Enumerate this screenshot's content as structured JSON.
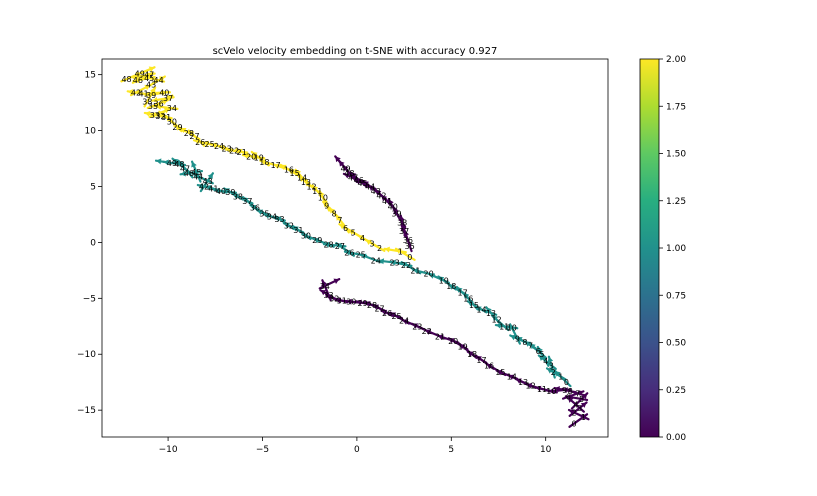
{
  "chart_data": {
    "type": "scatter",
    "title": "scVelo velocity embedding on t-SNE with accuracy 0.927",
    "xlabel": "",
    "ylabel": "",
    "xlim": [
      -13.5,
      13.3
    ],
    "ylim": [
      -17.4,
      16.4
    ],
    "xticks": [
      -10,
      -5,
      0,
      5,
      10
    ],
    "yticks": [
      -15,
      -10,
      -5,
      0,
      5,
      10,
      15
    ],
    "xtick_labels": [
      "−10",
      "−5",
      "0",
      "5",
      "10"
    ],
    "ytick_labels": [
      "−15",
      "−10",
      "−5",
      "0",
      "5",
      "10",
      "15"
    ],
    "grid": false,
    "legend": "none",
    "colorbar": {
      "min": 0.0,
      "max": 2.0,
      "ticks": [
        0.0,
        0.25,
        0.5,
        0.75,
        1.0,
        1.25,
        1.5,
        1.75,
        2.0
      ],
      "tick_labels": [
        "0.00",
        "0.25",
        "0.50",
        "0.75",
        "1.00",
        "1.25",
        "1.50",
        "1.75",
        "2.00"
      ],
      "colormap": "viridis",
      "colors": [
        "#440154",
        "#3b528b",
        "#21918c",
        "#5ec962",
        "#fde725"
      ]
    },
    "series": [
      {
        "value": 2.0,
        "color": "#fde725",
        "points": [
          {
            "label": "0",
            "x": 2.8,
            "y": -1.3
          },
          {
            "label": "1",
            "x": 2.3,
            "y": -0.8
          },
          {
            "label": "2",
            "x": 1.2,
            "y": -0.5
          },
          {
            "label": "3",
            "x": 0.8,
            "y": -0.1
          },
          {
            "label": "4",
            "x": 0.3,
            "y": 0.4
          },
          {
            "label": "5",
            "x": -0.2,
            "y": 0.9
          },
          {
            "label": "6",
            "x": -0.6,
            "y": 1.3
          },
          {
            "label": "7",
            "x": -0.9,
            "y": 2.0
          },
          {
            "label": "8",
            "x": -1.2,
            "y": 2.6
          },
          {
            "label": "9",
            "x": -1.6,
            "y": 3.3
          },
          {
            "label": "10",
            "x": -1.8,
            "y": 4.0
          },
          {
            "label": "11",
            "x": -2.1,
            "y": 4.6
          },
          {
            "label": "12",
            "x": -2.4,
            "y": 5.0
          },
          {
            "label": "13",
            "x": -2.7,
            "y": 5.4
          },
          {
            "label": "14",
            "x": -2.9,
            "y": 5.8
          },
          {
            "label": "15",
            "x": -3.3,
            "y": 6.2
          },
          {
            "label": "16",
            "x": -3.6,
            "y": 6.5
          },
          {
            "label": "17",
            "x": -4.3,
            "y": 6.9
          },
          {
            "label": "18",
            "x": -4.9,
            "y": 7.2
          },
          {
            "label": "19",
            "x": -5.2,
            "y": 7.6
          },
          {
            "label": "20",
            "x": -5.6,
            "y": 7.7
          },
          {
            "label": "21",
            "x": -6.1,
            "y": 8.1
          },
          {
            "label": "22",
            "x": -6.5,
            "y": 8.2
          },
          {
            "label": "23",
            "x": -6.9,
            "y": 8.4
          },
          {
            "label": "24",
            "x": -7.3,
            "y": 8.6
          },
          {
            "label": "25",
            "x": -7.8,
            "y": 8.8
          },
          {
            "label": "26",
            "x": -8.3,
            "y": 9.0
          },
          {
            "label": "27",
            "x": -8.6,
            "y": 9.5
          },
          {
            "label": "28",
            "x": -8.9,
            "y": 9.8
          },
          {
            "label": "29",
            "x": -9.5,
            "y": 10.3
          },
          {
            "label": "30",
            "x": -9.8,
            "y": 10.8
          },
          {
            "label": "31",
            "x": -10.1,
            "y": 11.2
          },
          {
            "label": "32",
            "x": -10.4,
            "y": 11.3
          },
          {
            "label": "33",
            "x": -10.7,
            "y": 11.4
          },
          {
            "label": "34",
            "x": -9.8,
            "y": 12.0
          },
          {
            "label": "35",
            "x": -10.8,
            "y": 12.2
          },
          {
            "label": "36",
            "x": -10.5,
            "y": 12.4
          },
          {
            "label": "37",
            "x": -10.0,
            "y": 12.9
          },
          {
            "label": "38",
            "x": -11.1,
            "y": 12.6
          },
          {
            "label": "39",
            "x": -10.9,
            "y": 13.2
          },
          {
            "label": "40",
            "x": -10.2,
            "y": 13.4
          },
          {
            "label": "41",
            "x": -11.3,
            "y": 13.3
          },
          {
            "label": "42",
            "x": -11.7,
            "y": 13.4
          },
          {
            "label": "43",
            "x": -10.9,
            "y": 14.1
          },
          {
            "label": "44",
            "x": -10.5,
            "y": 14.5
          },
          {
            "label": "45",
            "x": -11.0,
            "y": 14.7
          },
          {
            "label": "46",
            "x": -11.6,
            "y": 14.5
          },
          {
            "label": "47",
            "x": -11.0,
            "y": 15.0
          },
          {
            "label": "48",
            "x": -12.2,
            "y": 14.6
          },
          {
            "label": "49",
            "x": -11.5,
            "y": 15.1
          }
        ]
      },
      {
        "value": 1.0,
        "color": "#21918c",
        "points": [
          {
            "label": "0",
            "x": 11.1,
            "y": -12.5
          },
          {
            "label": "1",
            "x": 10.8,
            "y": -12.0
          },
          {
            "label": "2",
            "x": 10.4,
            "y": -11.6
          },
          {
            "label": "3",
            "x": 10.3,
            "y": -11.0
          },
          {
            "label": "4",
            "x": 10.0,
            "y": -10.6
          },
          {
            "label": "5",
            "x": 9.8,
            "y": -10.0
          },
          {
            "label": "6",
            "x": 9.6,
            "y": -9.7
          },
          {
            "label": "7",
            "x": 9.2,
            "y": -9.2
          },
          {
            "label": "8",
            "x": 8.9,
            "y": -8.9
          },
          {
            "label": "9",
            "x": 8.5,
            "y": -8.6
          },
          {
            "label": "10",
            "x": 8.2,
            "y": -7.6
          },
          {
            "label": "11",
            "x": 7.8,
            "y": -7.5
          },
          {
            "label": "12",
            "x": 7.4,
            "y": -6.9
          },
          {
            "label": "13",
            "x": 7.1,
            "y": -6.3
          },
          {
            "label": "14",
            "x": 6.6,
            "y": -6.0
          },
          {
            "label": "15",
            "x": 6.2,
            "y": -5.6
          },
          {
            "label": "16",
            "x": 5.9,
            "y": -5.0
          },
          {
            "label": "17",
            "x": 5.6,
            "y": -4.5
          },
          {
            "label": "18",
            "x": 5.0,
            "y": -3.9
          },
          {
            "label": "19",
            "x": 4.6,
            "y": -3.4
          },
          {
            "label": "20",
            "x": 3.8,
            "y": -2.8
          },
          {
            "label": "21",
            "x": 3.1,
            "y": -2.5
          },
          {
            "label": "22",
            "x": 2.6,
            "y": -2.0
          },
          {
            "label": "23",
            "x": 2.0,
            "y": -1.8
          },
          {
            "label": "24",
            "x": 1.0,
            "y": -1.6
          },
          {
            "label": "25",
            "x": 0.2,
            "y": -1.1
          },
          {
            "label": "26",
            "x": -0.4,
            "y": -0.9
          },
          {
            "label": "27",
            "x": -0.9,
            "y": -0.3
          },
          {
            "label": "28",
            "x": -1.5,
            "y": -0.2
          },
          {
            "label": "29",
            "x": -2.1,
            "y": 0.2
          },
          {
            "label": "30",
            "x": -2.7,
            "y": 0.6
          },
          {
            "label": "31",
            "x": -3.1,
            "y": 1.1
          },
          {
            "label": "32",
            "x": -3.6,
            "y": 1.5
          },
          {
            "label": "33",
            "x": -4.1,
            "y": 2.1
          },
          {
            "label": "34",
            "x": -4.5,
            "y": 2.3
          },
          {
            "label": "35",
            "x": -4.9,
            "y": 2.6
          },
          {
            "label": "36",
            "x": -5.4,
            "y": 3.1
          },
          {
            "label": "37",
            "x": -5.8,
            "y": 3.7
          },
          {
            "label": "38",
            "x": -6.3,
            "y": 4.1
          },
          {
            "label": "39",
            "x": -6.7,
            "y": 4.5
          },
          {
            "label": "40",
            "x": -7.2,
            "y": 4.6
          },
          {
            "label": "41",
            "x": -7.6,
            "y": 4.8
          },
          {
            "label": "42",
            "x": -8.1,
            "y": 5.0
          },
          {
            "label": "43",
            "x": -7.9,
            "y": 5.5
          },
          {
            "label": "44",
            "x": -8.4,
            "y": 5.9
          },
          {
            "label": "45",
            "x": -8.5,
            "y": 6.3
          },
          {
            "label": "46",
            "x": -8.9,
            "y": 6.2
          },
          {
            "label": "47",
            "x": -9.1,
            "y": 6.6
          },
          {
            "label": "48",
            "x": -9.4,
            "y": 7.0
          },
          {
            "label": "49",
            "x": -9.8,
            "y": 7.1
          }
        ]
      },
      {
        "value": 0.0,
        "color": "#440154",
        "points": [
          {
            "label": "0",
            "x": 11.5,
            "y": -16.2
          },
          {
            "label": "1",
            "x": 12.0,
            "y": -15.6
          },
          {
            "label": "2",
            "x": 11.5,
            "y": -15.2
          },
          {
            "label": "3",
            "x": 11.8,
            "y": -14.8
          },
          {
            "label": "4",
            "x": 11.6,
            "y": -14.5
          },
          {
            "label": "5",
            "x": 11.9,
            "y": -14.0
          },
          {
            "label": "6",
            "x": 11.2,
            "y": -13.8
          },
          {
            "label": "7",
            "x": 11.7,
            "y": -13.5
          },
          {
            "label": "8",
            "x": 11.3,
            "y": -13.3
          },
          {
            "label": "9",
            "x": 11.0,
            "y": -13.2
          },
          {
            "label": "10",
            "x": 10.3,
            "y": -13.3
          },
          {
            "label": "11",
            "x": 9.8,
            "y": -13.1
          },
          {
            "label": "12",
            "x": 9.2,
            "y": -12.8
          },
          {
            "label": "13",
            "x": 8.8,
            "y": -12.5
          },
          {
            "label": "14",
            "x": 8.2,
            "y": -12.0
          },
          {
            "label": "15",
            "x": 7.6,
            "y": -11.6
          },
          {
            "label": "16",
            "x": 7.0,
            "y": -11.0
          },
          {
            "label": "17",
            "x": 6.6,
            "y": -10.5
          },
          {
            "label": "18",
            "x": 6.1,
            "y": -10.0
          },
          {
            "label": "19",
            "x": 5.6,
            "y": -9.3
          },
          {
            "label": "20",
            "x": 5.1,
            "y": -8.8
          },
          {
            "label": "21",
            "x": 4.4,
            "y": -8.4
          },
          {
            "label": "22",
            "x": 3.7,
            "y": -7.9
          },
          {
            "label": "23",
            "x": 3.2,
            "y": -7.5
          },
          {
            "label": "24",
            "x": 2.5,
            "y": -7.0
          },
          {
            "label": "25",
            "x": 2.1,
            "y": -6.6
          },
          {
            "label": "26",
            "x": 1.6,
            "y": -6.3
          },
          {
            "label": "27",
            "x": 1.2,
            "y": -5.9
          },
          {
            "label": "28",
            "x": 0.8,
            "y": -5.6
          },
          {
            "label": "29",
            "x": 0.3,
            "y": -5.4
          },
          {
            "label": "30",
            "x": -0.3,
            "y": -5.3
          },
          {
            "label": "31",
            "x": -0.8,
            "y": -5.2
          },
          {
            "label": "32",
            "x": -1.2,
            "y": -5.0
          },
          {
            "label": "33",
            "x": -1.5,
            "y": -4.7
          },
          {
            "label": "34",
            "x": -1.7,
            "y": -3.9
          },
          {
            "label": "35",
            "x": 2.8,
            "y": -0.3
          },
          {
            "label": "36",
            "x": 2.7,
            "y": 0.2
          },
          {
            "label": "37",
            "x": 2.5,
            "y": 1.0
          },
          {
            "label": "38",
            "x": 2.4,
            "y": 1.8
          },
          {
            "label": "39",
            "x": 2.1,
            "y": 2.6
          },
          {
            "label": "40",
            "x": 1.9,
            "y": 3.2
          },
          {
            "label": "41",
            "x": 1.6,
            "y": 3.7
          },
          {
            "label": "42",
            "x": 1.3,
            "y": 4.2
          },
          {
            "label": "43",
            "x": 1.0,
            "y": 4.6
          },
          {
            "label": "44",
            "x": 0.7,
            "y": 5.0
          },
          {
            "label": "45",
            "x": 0.3,
            "y": 5.3
          },
          {
            "label": "46",
            "x": 0.1,
            "y": 5.6
          },
          {
            "label": "47",
            "x": -0.2,
            "y": 5.8
          },
          {
            "label": "48",
            "x": -0.4,
            "y": 6.2
          },
          {
            "label": "49",
            "x": -0.6,
            "y": 6.6
          }
        ]
      }
    ]
  }
}
